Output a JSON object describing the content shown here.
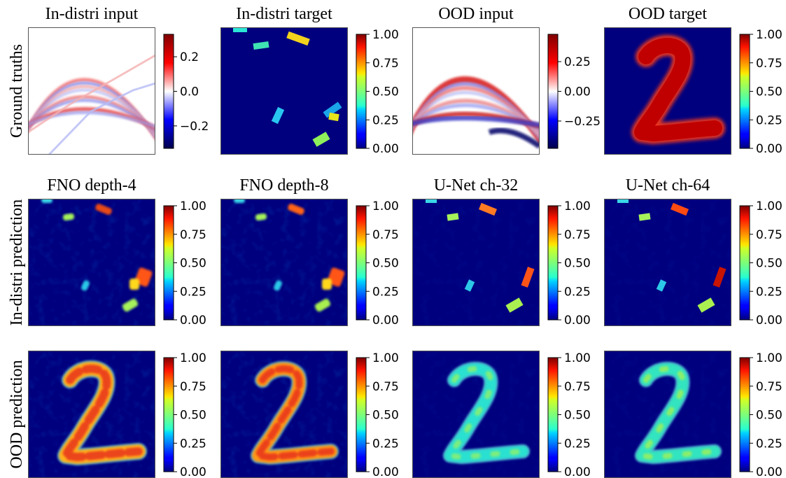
{
  "chart_data": {
    "type": "heatmap",
    "row_labels": [
      "Ground truths",
      "In-distri prediction",
      "OOD prediction"
    ],
    "rows": [
      {
        "label": "Ground truths",
        "panels": [
          {
            "title": "In-distri input",
            "colormap": "seismic",
            "vmin": -0.33,
            "vmax": 0.33,
            "ticks": [
              0.2,
              0.0,
              -0.2
            ],
            "tick_labels": [
              "0.2",
              "0.0",
              "−0.2"
            ],
            "content": "seismic wavefield, positive/negative stripes in peaked fan"
          },
          {
            "title": "In-distri target",
            "colormap": "jet",
            "vmin": 0,
            "vmax": 1,
            "ticks": [
              1,
              0.75,
              0.5,
              0.25,
              0
            ],
            "tick_labels": [
              "1.00",
              "0.75",
              "0.50",
              "0.25",
              "0.00"
            ],
            "content": "small scattered rectangular patches"
          },
          {
            "title": "OOD input",
            "colormap": "seismic",
            "vmin": -0.48,
            "vmax": 0.48,
            "ticks": [
              0.25,
              0.0,
              -0.25
            ],
            "tick_labels": [
              "0.25",
              "0.00",
              "−0.25"
            ],
            "content": "seismic wavefield with strong red arc"
          },
          {
            "title": "OOD target",
            "colormap": "jet",
            "vmin": 0,
            "vmax": 1,
            "ticks": [
              1,
              0.75,
              0.5,
              0.25,
              0
            ],
            "tick_labels": [
              "1.00",
              "0.75",
              "0.50",
              "0.25",
              "0.00"
            ],
            "content": "digit 2 shape at value 1.0"
          }
        ]
      },
      {
        "label": "In-distri prediction",
        "panels": [
          {
            "title": "FNO depth-4",
            "colormap": "jet",
            "vmin": 0,
            "vmax": 1,
            "ticks": [
              1,
              0.75,
              0.5,
              0.25,
              0
            ],
            "tick_labels": [
              "1.00",
              "0.75",
              "0.50",
              "0.25",
              "0.00"
            ]
          },
          {
            "title": "FNO depth-8",
            "colormap": "jet",
            "vmin": 0,
            "vmax": 1,
            "ticks": [
              1,
              0.75,
              0.5,
              0.25,
              0
            ],
            "tick_labels": [
              "1.00",
              "0.75",
              "0.50",
              "0.25",
              "0.00"
            ]
          },
          {
            "title": "U-Net ch-32",
            "colormap": "jet",
            "vmin": 0,
            "vmax": 1,
            "ticks": [
              1,
              0.75,
              0.5,
              0.25,
              0
            ],
            "tick_labels": [
              "1.00",
              "0.75",
              "0.50",
              "0.25",
              "0.00"
            ]
          },
          {
            "title": "U-Net ch-64",
            "colormap": "jet",
            "vmin": 0,
            "vmax": 1,
            "ticks": [
              1,
              0.75,
              0.5,
              0.25,
              0
            ],
            "tick_labels": [
              "1.00",
              "0.75",
              "0.50",
              "0.25",
              "0.00"
            ]
          }
        ]
      },
      {
        "label": "OOD prediction",
        "panels": [
          {
            "title": "",
            "colormap": "jet",
            "vmin": 0,
            "vmax": 1,
            "ticks": [
              1,
              0.75,
              0.5,
              0.25,
              0
            ],
            "tick_labels": [
              "1.00",
              "0.75",
              "0.50",
              "0.25",
              "0.00"
            ]
          },
          {
            "title": "",
            "colormap": "jet",
            "vmin": 0,
            "vmax": 1,
            "ticks": [
              1,
              0.75,
              0.5,
              0.25,
              0
            ],
            "tick_labels": [
              "1.00",
              "0.75",
              "0.50",
              "0.25",
              "0.00"
            ]
          },
          {
            "title": "",
            "colormap": "jet",
            "vmin": 0,
            "vmax": 1,
            "ticks": [
              1,
              0.75,
              0.5,
              0.25,
              0
            ],
            "tick_labels": [
              "1.00",
              "0.75",
              "0.50",
              "0.25",
              "0.00"
            ]
          },
          {
            "title": "",
            "colormap": "jet",
            "vmin": 0,
            "vmax": 1,
            "ticks": [
              1,
              0.75,
              0.5,
              0.25,
              0
            ],
            "tick_labels": [
              "1.00",
              "0.75",
              "0.50",
              "0.25",
              "0.00"
            ]
          }
        ]
      }
    ],
    "colors": {
      "jet_background": "#00007f",
      "seismic_background": "#ffffff",
      "frame": "#555555"
    }
  }
}
